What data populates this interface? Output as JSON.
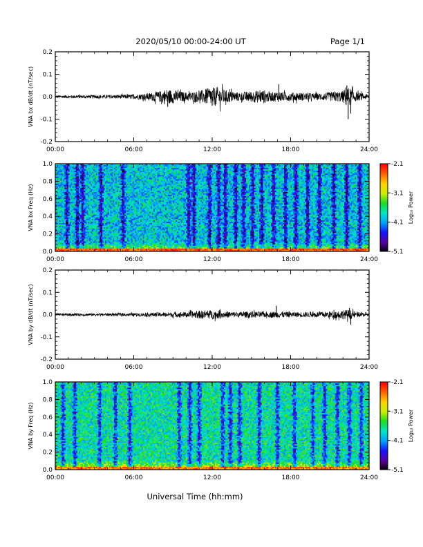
{
  "header": {
    "title": "2020/05/10  00:00-24:00 UT",
    "page_label": "Page 1/1"
  },
  "footer": {
    "xlabel": "Universal Time (hh:mm)"
  },
  "colorbar": {
    "label": "Log₁₀ Power",
    "ticks": [
      "-2.1",
      "-3.1",
      "-4.1",
      "-5.1"
    ],
    "range": [
      -5.1,
      -2.1
    ],
    "colors": [
      "#000000",
      "#5a00a0",
      "#1414ff",
      "#00a0ff",
      "#00e6c8",
      "#14dc28",
      "#c8f000",
      "#ffd200",
      "#ff6400",
      "#ff0000"
    ]
  },
  "chart_data": [
    {
      "type": "line",
      "ylabel": "VNA bx dB/dt (nT/sec)",
      "xlim": [
        0,
        24
      ],
      "ylim": [
        -0.2,
        0.2
      ],
      "xticks": [
        "00:00",
        "06:00",
        "12:00",
        "18:00",
        "24:00"
      ],
      "yticks": [
        "0.2",
        "0.1",
        "0.0",
        "-0.1",
        "-0.2"
      ],
      "envelope": {
        "hours": [
          0,
          2,
          4,
          6,
          7,
          8,
          8.5,
          9,
          10,
          11,
          11.5,
          12,
          12.5,
          13,
          14,
          15,
          16,
          16.5,
          17,
          17.5,
          18,
          19,
          20,
          21,
          22,
          22.2,
          22.5,
          23,
          24
        ],
        "amplitude": [
          0.006,
          0.007,
          0.008,
          0.01,
          0.015,
          0.025,
          0.035,
          0.03,
          0.02,
          0.025,
          0.035,
          0.04,
          0.045,
          0.03,
          0.02,
          0.025,
          0.03,
          0.02,
          0.025,
          0.02,
          0.02,
          0.018,
          0.015,
          0.02,
          0.025,
          0.045,
          0.04,
          0.02,
          0.01
        ]
      },
      "spikes": [
        {
          "hour": 8.6,
          "value": -0.045
        },
        {
          "hour": 12.0,
          "value": -0.04
        },
        {
          "hour": 17.1,
          "value": 0.055
        },
        {
          "hour": 22.3,
          "value": 0.05
        },
        {
          "hour": 22.4,
          "value": -0.1
        },
        {
          "hour": 22.6,
          "value": -0.075
        }
      ]
    },
    {
      "type": "heatmap",
      "ylabel": "VNA bx Freq (Hz)",
      "xlim": [
        0,
        24
      ],
      "ylim": [
        0.0,
        1.0
      ],
      "xticks": [
        "00:00",
        "06:00",
        "12:00",
        "18:00",
        "24:00"
      ],
      "yticks": [
        "1.0",
        "0.8",
        "0.6",
        "0.4",
        "0.2",
        "0.0"
      ],
      "value_range": [
        -5.1,
        -2.1
      ],
      "background_level": -3.9,
      "low_freq_band_level": -3.0,
      "quiet_columns_hours": [
        0.9,
        1.7,
        2.1,
        3.5,
        5.2,
        10.2,
        10.6,
        11.8,
        12.5,
        13.0,
        13.8,
        14.4,
        15.1,
        15.8,
        16.7,
        17.6,
        18.4,
        19.3,
        20.2,
        21.3,
        22.3,
        23.3
      ]
    },
    {
      "type": "line",
      "ylabel": "VNA by dB/dt (nT/sec)",
      "xlim": [
        0,
        24
      ],
      "ylim": [
        -0.2,
        0.2
      ],
      "xticks": [
        "00:00",
        "06:00",
        "12:00",
        "18:00",
        "24:00"
      ],
      "yticks": [
        "0.2",
        "0.1",
        "0.0",
        "-0.1",
        "-0.2"
      ],
      "envelope": {
        "hours": [
          0,
          2,
          4,
          6,
          8,
          10,
          11,
          12,
          13,
          14,
          15,
          16,
          17,
          18,
          19,
          20,
          21,
          22,
          22.5,
          23,
          24
        ],
        "amplitude": [
          0.005,
          0.006,
          0.006,
          0.007,
          0.01,
          0.012,
          0.018,
          0.02,
          0.015,
          0.012,
          0.015,
          0.012,
          0.015,
          0.012,
          0.012,
          0.012,
          0.015,
          0.02,
          0.022,
          0.012,
          0.008
        ]
      },
      "spikes": [
        {
          "hour": 16.9,
          "value": 0.04
        },
        {
          "hour": 22.5,
          "value": 0.03
        },
        {
          "hour": 22.6,
          "value": -0.045
        }
      ]
    },
    {
      "type": "heatmap",
      "ylabel": "VNA by Freq (Hz)",
      "xlim": [
        0,
        24
      ],
      "ylim": [
        0.0,
        1.0
      ],
      "xticks": [
        "00:00",
        "06:00",
        "12:00",
        "18:00",
        "24:00"
      ],
      "yticks": [
        "1.0",
        "0.8",
        "0.6",
        "0.4",
        "0.2",
        "0.0"
      ],
      "value_range": [
        -5.1,
        -2.1
      ],
      "background_level": -3.7,
      "low_freq_band_level": -3.1,
      "quiet_columns_hours": [
        0.6,
        1.5,
        3.4,
        4.6,
        5.7,
        9.5,
        10.3,
        11.0,
        12.8,
        13.4,
        14.1,
        15.6,
        17.0,
        18.3,
        19.7,
        20.6,
        21.6,
        22.5,
        23.4
      ]
    }
  ]
}
